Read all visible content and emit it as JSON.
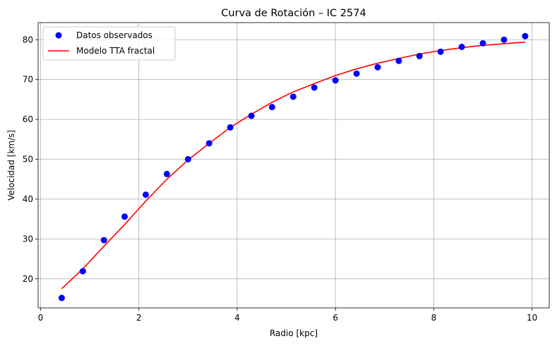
{
  "chart_data": {
    "type": "scatter",
    "title": "Curva de Rotación – IC 2574",
    "xlabel": "Radio [kpc]",
    "ylabel": "Velocidad [km/s]",
    "xlim": [
      -0.05,
      10.35
    ],
    "ylim": [
      12.7,
      84.3
    ],
    "xticks": [
      0,
      2,
      4,
      6,
      8,
      10
    ],
    "yticks": [
      20,
      30,
      40,
      50,
      60,
      70,
      80
    ],
    "grid": true,
    "legend_position": "top-left",
    "series": [
      {
        "name": "Datos observados",
        "kind": "scatter",
        "color": "#0000ff",
        "x": [
          0.43,
          0.86,
          1.29,
          1.71,
          2.14,
          2.57,
          3.0,
          3.43,
          3.86,
          4.29,
          4.71,
          5.14,
          5.57,
          6.0,
          6.43,
          6.86,
          7.29,
          7.71,
          8.14,
          8.57,
          9.0,
          9.43,
          9.86
        ],
        "y": [
          15.2,
          21.9,
          29.7,
          35.6,
          41.1,
          46.3,
          50.0,
          54.0,
          58.0,
          60.9,
          63.1,
          65.7,
          68.0,
          69.8,
          71.5,
          73.1,
          74.7,
          75.9,
          77.0,
          78.2,
          79.1,
          80.0,
          80.9
        ]
      },
      {
        "name": "Modelo TTA fractal",
        "kind": "line",
        "color": "#ff0000",
        "x": [
          0.43,
          0.86,
          1.29,
          1.71,
          2.14,
          2.57,
          3.0,
          3.43,
          3.86,
          4.29,
          4.71,
          5.14,
          5.57,
          6.0,
          6.43,
          6.86,
          7.29,
          7.71,
          8.14,
          8.57,
          9.0,
          9.43,
          9.86
        ],
        "y": [
          17.5,
          22.5,
          28.2,
          33.6,
          39.5,
          45.0,
          49.8,
          54.0,
          58.0,
          61.3,
          64.3,
          66.9,
          69.0,
          71.0,
          72.7,
          74.1,
          75.3,
          76.4,
          77.3,
          78.0,
          78.6,
          79.0,
          79.4
        ]
      }
    ]
  }
}
